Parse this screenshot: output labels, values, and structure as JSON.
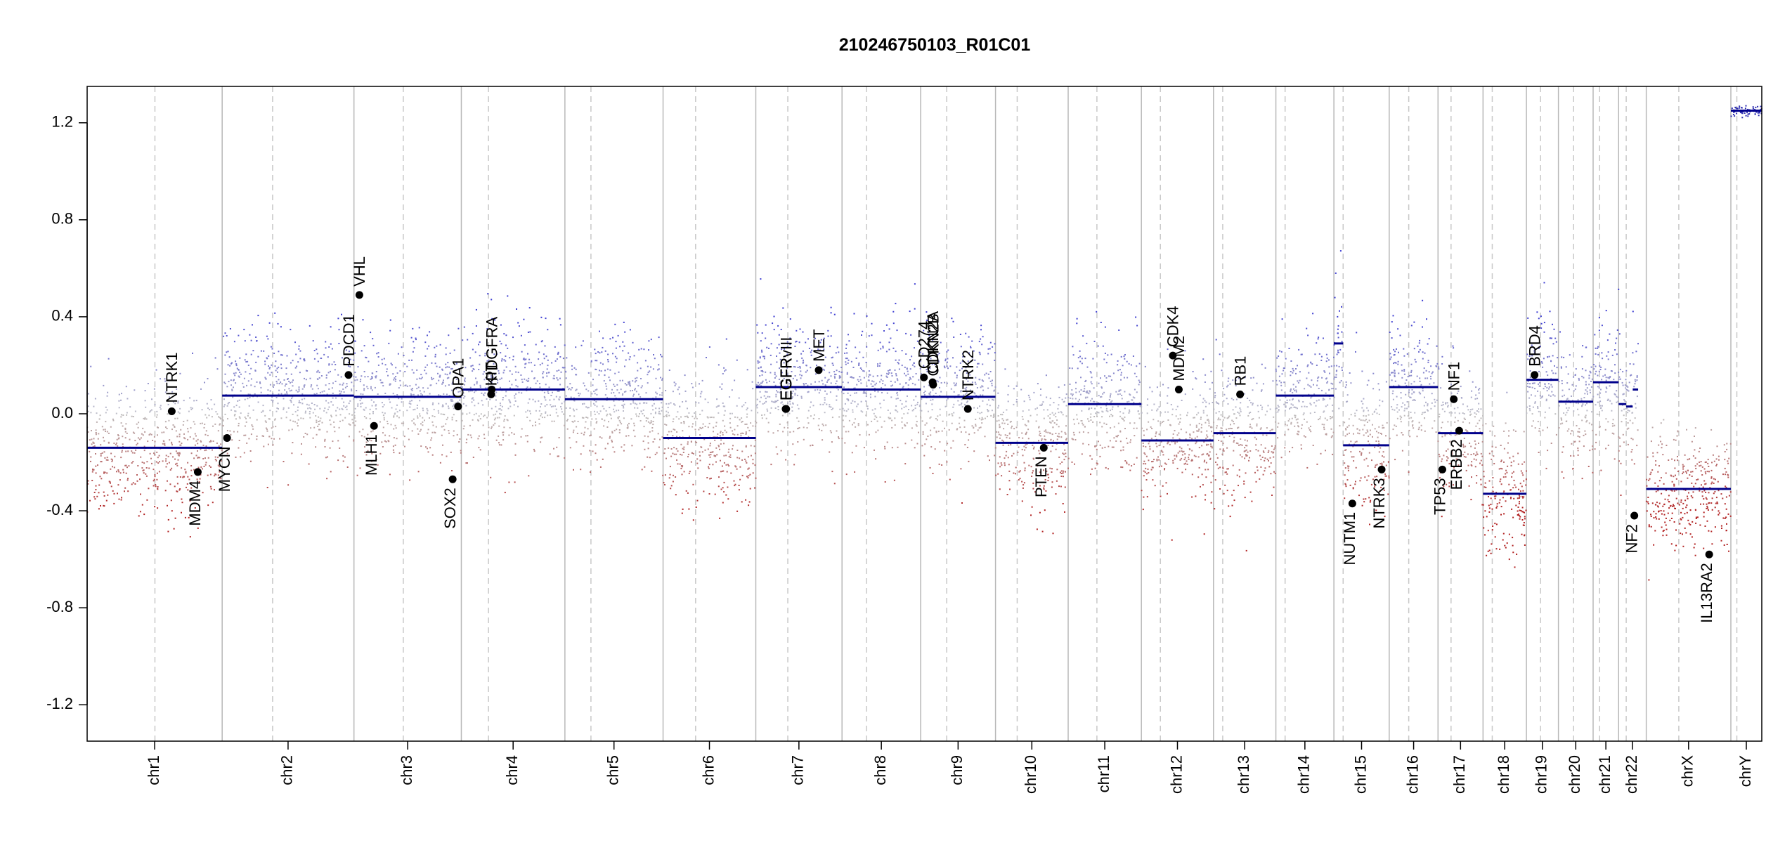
{
  "chart_data": {
    "type": "scatter",
    "title": "210246750103_R01C01",
    "xlabel": "",
    "ylabel": "",
    "ylim": [
      -1.35,
      1.35
    ],
    "y_ticks": [
      -1.2,
      -0.8,
      -0.4,
      0.0,
      0.4,
      0.8,
      1.2
    ],
    "y_tick_labels": [
      "-1.2",
      "-0.8",
      "-0.4",
      "0.0",
      "0.4",
      "0.8",
      "1.2"
    ],
    "chromosomes": [
      {
        "name": "chr1",
        "start": 0,
        "end": 249,
        "centromere": 125
      },
      {
        "name": "chr2",
        "start": 249,
        "end": 492,
        "centromere": 342
      },
      {
        "name": "chr3",
        "start": 492,
        "end": 690,
        "centromere": 583
      },
      {
        "name": "chr4",
        "start": 690,
        "end": 881,
        "centromere": 740
      },
      {
        "name": "chr5",
        "start": 881,
        "end": 1062,
        "centromere": 929
      },
      {
        "name": "chr6",
        "start": 1062,
        "end": 1233,
        "centromere": 1122
      },
      {
        "name": "chr7",
        "start": 1233,
        "end": 1392,
        "centromere": 1292
      },
      {
        "name": "chr8",
        "start": 1392,
        "end": 1537,
        "centromere": 1437
      },
      {
        "name": "chr9",
        "start": 1537,
        "end": 1675,
        "centromere": 1585
      },
      {
        "name": "chr10",
        "start": 1675,
        "end": 1809,
        "centromere": 1715
      },
      {
        "name": "chr11",
        "start": 1809,
        "end": 1944,
        "centromere": 1862
      },
      {
        "name": "chr12",
        "start": 1944,
        "end": 2077,
        "centromere": 1979
      },
      {
        "name": "chr13",
        "start": 2077,
        "end": 2192,
        "centromere": 2094
      },
      {
        "name": "chr14",
        "start": 2192,
        "end": 2299,
        "centromere": 2209
      },
      {
        "name": "chr15",
        "start": 2299,
        "end": 2401,
        "centromere": 2316
      },
      {
        "name": "chr16",
        "start": 2401,
        "end": 2491,
        "centromere": 2437
      },
      {
        "name": "chr17",
        "start": 2491,
        "end": 2574,
        "centromere": 2515
      },
      {
        "name": "chr18",
        "start": 2574,
        "end": 2654,
        "centromere": 2591
      },
      {
        "name": "chr19",
        "start": 2654,
        "end": 2713,
        "centromere": 2680
      },
      {
        "name": "chr20",
        "start": 2713,
        "end": 2777,
        "centromere": 2741
      },
      {
        "name": "chr21",
        "start": 2777,
        "end": 2824,
        "centromere": 2789
      },
      {
        "name": "chr22",
        "start": 2824,
        "end": 2875,
        "centromere": 2838
      },
      {
        "name": "chrX",
        "start": 2875,
        "end": 3031,
        "centromere": 2935
      },
      {
        "name": "chrY",
        "start": 3031,
        "end": 3088,
        "centromere": 3042
      }
    ],
    "segments": [
      {
        "chrom": "chr1",
        "start": 0,
        "end": 249,
        "value": -0.14
      },
      {
        "chrom": "chr2",
        "start": 249,
        "end": 492,
        "value": 0.075
      },
      {
        "chrom": "chr3",
        "start": 492,
        "end": 690,
        "value": 0.07
      },
      {
        "chrom": "chr4",
        "start": 690,
        "end": 881,
        "value": 0.1
      },
      {
        "chrom": "chr5",
        "start": 881,
        "end": 1062,
        "value": 0.06
      },
      {
        "chrom": "chr6",
        "start": 1062,
        "end": 1233,
        "value": -0.1
      },
      {
        "chrom": "chr7",
        "start": 1233,
        "end": 1392,
        "value": 0.11
      },
      {
        "chrom": "chr8",
        "start": 1392,
        "end": 1537,
        "value": 0.1
      },
      {
        "chrom": "chr9",
        "start": 1537,
        "end": 1675,
        "value": 0.07
      },
      {
        "chrom": "chr10",
        "start": 1675,
        "end": 1809,
        "value": -0.12
      },
      {
        "chrom": "chr11",
        "start": 1809,
        "end": 1944,
        "value": 0.04
      },
      {
        "chrom": "chr12",
        "start": 1944,
        "end": 2077,
        "value": -0.11
      },
      {
        "chrom": "chr13",
        "start": 2077,
        "end": 2192,
        "value": -0.08
      },
      {
        "chrom": "chr14",
        "start": 2192,
        "end": 2299,
        "value": 0.075
      },
      {
        "chrom": "chr15",
        "start": 2299,
        "end": 2316,
        "value": 0.29
      },
      {
        "chrom": "chr15",
        "start": 2316,
        "end": 2401,
        "value": -0.13
      },
      {
        "chrom": "chr16",
        "start": 2401,
        "end": 2491,
        "value": 0.11
      },
      {
        "chrom": "chr17",
        "start": 2491,
        "end": 2574,
        "value": -0.08
      },
      {
        "chrom": "chr18",
        "start": 2574,
        "end": 2654,
        "value": -0.33
      },
      {
        "chrom": "chr19",
        "start": 2654,
        "end": 2713,
        "value": 0.14
      },
      {
        "chrom": "chr20",
        "start": 2713,
        "end": 2777,
        "value": 0.05
      },
      {
        "chrom": "chr21",
        "start": 2777,
        "end": 2824,
        "value": 0.13
      },
      {
        "chrom": "chr22",
        "start": 2824,
        "end": 2838,
        "value": 0.04
      },
      {
        "chrom": "chr22",
        "start": 2838,
        "end": 2850,
        "value": 0.03
      },
      {
        "chrom": "chr22",
        "start": 2850,
        "end": 2860,
        "value": 0.1
      },
      {
        "chrom": "chrX",
        "start": 2875,
        "end": 3031,
        "value": -0.31
      },
      {
        "chrom": "chrY",
        "start": 3031,
        "end": 3088,
        "value": 1.25
      }
    ],
    "genes": [
      {
        "name": "NTRK1",
        "pos": 156,
        "value": 0.01,
        "label_side": "up"
      },
      {
        "name": "MDM4",
        "pos": 204,
        "value": -0.24,
        "label_side": "down"
      },
      {
        "name": "MYCN",
        "pos": 258,
        "value": -0.1,
        "label_side": "down"
      },
      {
        "name": "PDCD1",
        "pos": 482,
        "value": 0.16,
        "label_side": "up"
      },
      {
        "name": "VHL",
        "pos": 502,
        "value": 0.49,
        "label_side": "up"
      },
      {
        "name": "MLH1",
        "pos": 529,
        "value": -0.05,
        "label_side": "down"
      },
      {
        "name": "SOX2",
        "pos": 674,
        "value": -0.27,
        "label_side": "down"
      },
      {
        "name": "OPA1",
        "pos": 684,
        "value": 0.03,
        "label_side": "up"
      },
      {
        "name": "KIT",
        "pos": 745,
        "value": 0.08,
        "label_side": "up"
      },
      {
        "name": "PDGFRA",
        "pos": 746,
        "value": 0.1,
        "label_side": "up"
      },
      {
        "name": "EGFR",
        "pos": 1288,
        "value": 0.02,
        "label_side": "up"
      },
      {
        "name": "EGFRvIII",
        "pos": 1289,
        "value": 0.02,
        "label_side": "up"
      },
      {
        "name": "MET",
        "pos": 1349,
        "value": 0.18,
        "label_side": "up"
      },
      {
        "name": "CD274",
        "pos": 1543,
        "value": 0.15,
        "label_side": "up"
      },
      {
        "name": "CDKN2A",
        "pos": 1559,
        "value": 0.13,
        "label_side": "up"
      },
      {
        "name": "CDKN2B",
        "pos": 1560,
        "value": 0.12,
        "label_side": "up"
      },
      {
        "name": "NTRK2",
        "pos": 1624,
        "value": 0.02,
        "label_side": "up"
      },
      {
        "name": "PTEN",
        "pos": 1764,
        "value": -0.14,
        "label_side": "down"
      },
      {
        "name": "CDK4",
        "pos": 2002,
        "value": 0.24,
        "label_side": "up"
      },
      {
        "name": "MDM2",
        "pos": 2013,
        "value": 0.1,
        "label_side": "up"
      },
      {
        "name": "RB1",
        "pos": 2126,
        "value": 0.08,
        "label_side": "up"
      },
      {
        "name": "NUTM1",
        "pos": 2333,
        "value": -0.37,
        "label_side": "down"
      },
      {
        "name": "NTRK3",
        "pos": 2387,
        "value": -0.23,
        "label_side": "down"
      },
      {
        "name": "TP53",
        "pos": 2499,
        "value": -0.23,
        "label_side": "down"
      },
      {
        "name": "NF1",
        "pos": 2520,
        "value": 0.06,
        "label_side": "up"
      },
      {
        "name": "ERBB2",
        "pos": 2530,
        "value": -0.07,
        "label_side": "down"
      },
      {
        "name": "BRD4",
        "pos": 2669,
        "value": 0.16,
        "label_side": "up"
      },
      {
        "name": "NF2",
        "pos": 2853,
        "value": -0.42,
        "label_side": "down"
      },
      {
        "name": "IL13RA2",
        "pos": 2991,
        "value": -0.58,
        "label_side": "down"
      }
    ],
    "probe_colors": {
      "gain": "#3b3bcc",
      "neutral": "#bbbbbb",
      "loss": "#b22222",
      "segment": "#00008b"
    }
  }
}
